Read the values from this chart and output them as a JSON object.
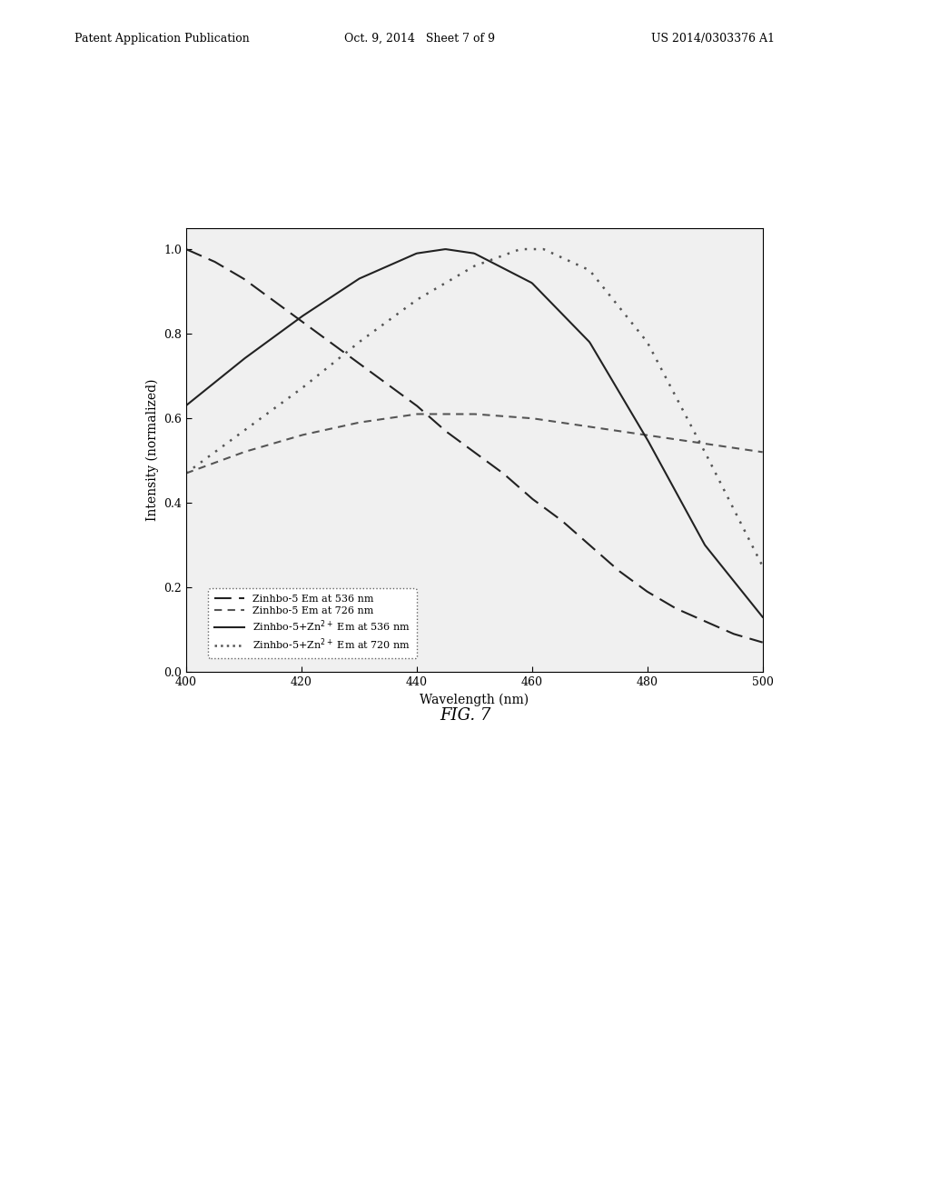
{
  "xlabel": "Wavelength (nm)",
  "ylabel": "Intensity (normalized)",
  "xlim": [
    400,
    500
  ],
  "ylim": [
    0.0,
    1.05
  ],
  "yticks": [
    0.0,
    0.2,
    0.4,
    0.6,
    0.8,
    1.0
  ],
  "xticks": [
    400,
    420,
    440,
    460,
    480,
    500
  ],
  "legend_labels": [
    "Zinhbo-5 Em at 536 nm",
    "Zinhbo-5 Em at 726 nm",
    "Zinhbo-5+Zn$^{2+}$ Em at 536 nm",
    "Zinhbo-5+Zn$^{2+}$ Em at 720 nm"
  ],
  "bg_color": "#f0f0f0",
  "header_left": "Patent Application Publication",
  "header_mid": "Oct. 9, 2014   Sheet 7 of 9",
  "header_right": "US 2014/0303376 A1",
  "fig_label": "FIG. 7",
  "curve1_kx": [
    400,
    405,
    410,
    415,
    420,
    425,
    430,
    435,
    440,
    445,
    450,
    455,
    460,
    465,
    470,
    475,
    480,
    485,
    490,
    495,
    500
  ],
  "curve1_ky": [
    1.0,
    0.97,
    0.93,
    0.88,
    0.83,
    0.78,
    0.73,
    0.68,
    0.63,
    0.57,
    0.52,
    0.47,
    0.41,
    0.36,
    0.3,
    0.24,
    0.19,
    0.15,
    0.12,
    0.09,
    0.07
  ],
  "curve2_kx": [
    400,
    410,
    420,
    430,
    440,
    450,
    460,
    470,
    480,
    490,
    500
  ],
  "curve2_ky": [
    0.47,
    0.52,
    0.56,
    0.59,
    0.61,
    0.61,
    0.6,
    0.58,
    0.56,
    0.54,
    0.52
  ],
  "curve3_kx": [
    400,
    410,
    420,
    430,
    440,
    445,
    450,
    460,
    470,
    480,
    490,
    500
  ],
  "curve3_ky": [
    0.63,
    0.74,
    0.84,
    0.93,
    0.99,
    1.0,
    0.99,
    0.92,
    0.78,
    0.55,
    0.3,
    0.13
  ],
  "curve4_kx": [
    400,
    410,
    420,
    430,
    440,
    450,
    458,
    462,
    470,
    480,
    490,
    500
  ],
  "curve4_ky": [
    0.47,
    0.57,
    0.67,
    0.78,
    0.88,
    0.96,
    1.0,
    1.0,
    0.95,
    0.78,
    0.52,
    0.25
  ]
}
